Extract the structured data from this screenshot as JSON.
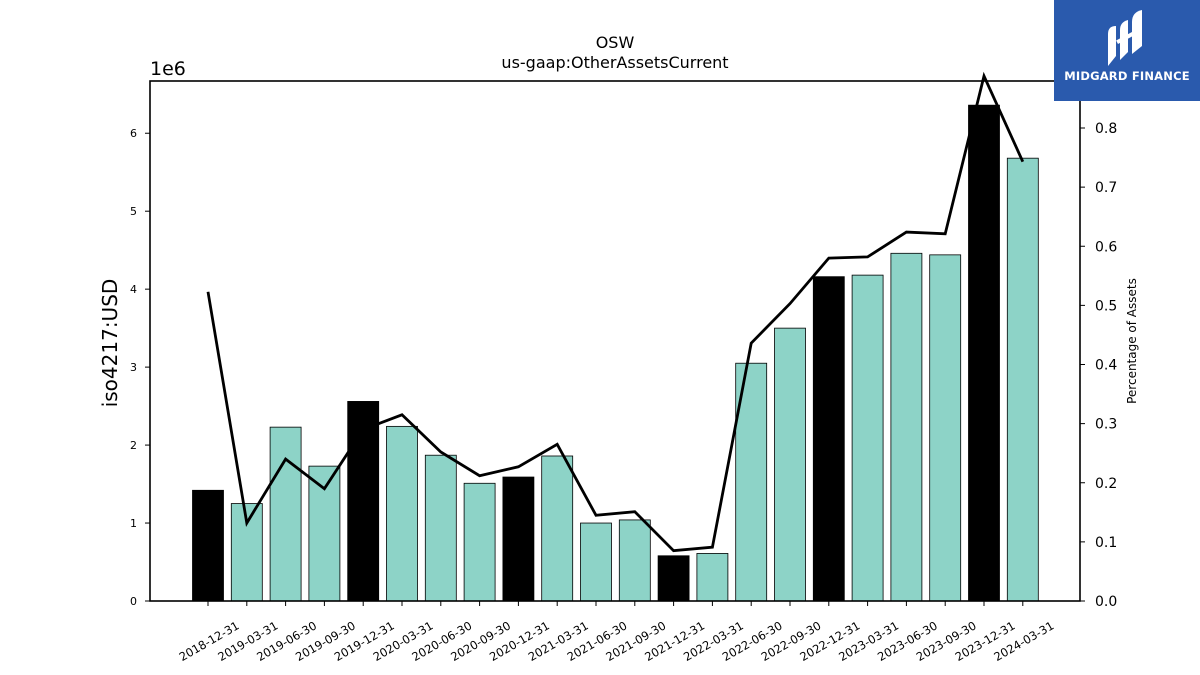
{
  "chart_data": {
    "type": "bar",
    "title": "OSW",
    "subtitle": "us-gaap:OtherAssetsCurrent",
    "ylabel": "iso4217:USD",
    "y2label": "Percentage of Assets",
    "offset_label": "1e6",
    "ylim": [
      0,
      6.67
    ],
    "y2lim": [
      0,
      0.8795
    ],
    "yticks": [
      "0",
      "1",
      "2",
      "3",
      "4",
      "5",
      "6"
    ],
    "y2ticks": [
      "0.0",
      "0.1",
      "0.2",
      "0.3",
      "0.4",
      "0.5",
      "0.6",
      "0.7",
      "0.8"
    ],
    "grid": false,
    "categories": [
      "2018-12-31",
      "2019-03-31",
      "2019-06-30",
      "2019-09-30",
      "2019-12-31",
      "2020-03-31",
      "2020-06-30",
      "2020-09-30",
      "2020-12-31",
      "2021-03-31",
      "2021-06-30",
      "2021-09-30",
      "2021-12-31",
      "2022-03-31",
      "2022-06-30",
      "2022-09-30",
      "2022-12-31",
      "2023-03-31",
      "2023-06-30",
      "2023-09-30",
      "2023-12-31",
      "2024-03-31"
    ],
    "series": [
      {
        "type": "bar",
        "values": [
          1.42,
          1.25,
          2.23,
          1.73,
          2.56,
          2.24,
          1.87,
          1.51,
          1.59,
          1.86,
          1.0,
          1.04,
          0.58,
          0.61,
          3.05,
          3.5,
          4.16,
          4.18,
          4.46,
          4.44,
          6.36,
          5.68
        ],
        "bar_kinds": [
          "annual",
          "quarter",
          "quarter",
          "quarter",
          "annual",
          "quarter",
          "quarter",
          "quarter",
          "annual",
          "quarter",
          "quarter",
          "quarter",
          "annual",
          "quarter",
          "quarter",
          "quarter",
          "annual",
          "quarter",
          "quarter",
          "quarter",
          "annual",
          "quarter"
        ]
      },
      {
        "type": "line",
        "axis": "right",
        "values": [
          0.523,
          0.132,
          0.24,
          0.19,
          0.29,
          0.315,
          0.252,
          0.212,
          0.227,
          0.265,
          0.145,
          0.151,
          0.085,
          0.091,
          0.436,
          0.503,
          0.58,
          0.582,
          0.624,
          0.621,
          0.888,
          0.743
        ]
      }
    ],
    "colors": {
      "annual": "#000000",
      "quarter": "#8dd3c7",
      "line": "#000000",
      "edge": "#000000"
    }
  },
  "logo": {
    "text": "MIDGARD FINANCE",
    "background": "#2a5aad",
    "icon": "midgard-logo-icon"
  }
}
